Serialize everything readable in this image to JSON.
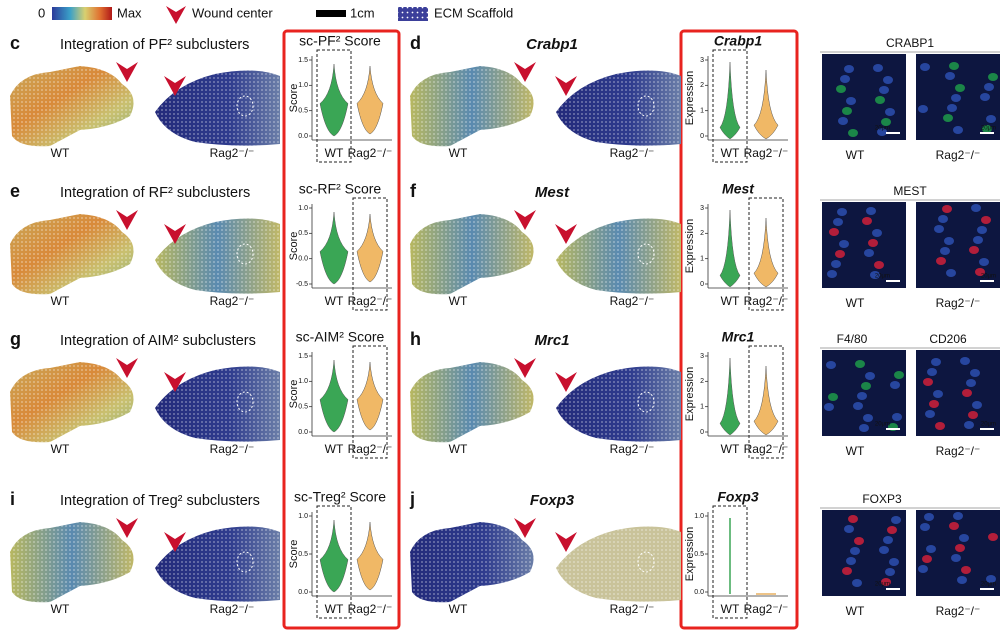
{
  "legend": {
    "min": "0",
    "max": "Max",
    "wound": "Wound center",
    "scale": "1cm",
    "ecm": "ECM Scaffold"
  },
  "rows": [
    {
      "score_panel": {
        "letter": "c",
        "title": "Integration of PF² subclusters",
        "wt": "WT",
        "ko": "Rag2⁻/⁻",
        "violin_title": "sc-PF² Score",
        "y_label": "Score",
        "yticks": [
          "1.5",
          "1.0",
          "0.5",
          "0.0"
        ],
        "groups": [
          "WT",
          "Rag2⁻/⁻"
        ]
      },
      "gene_panel": {
        "letter": "d",
        "title": "Crabp1",
        "wt": "WT",
        "ko": "Rag2⁻/⁻",
        "violin_title": "Crabp1",
        "y_label": "Expression",
        "yticks": [
          "3",
          "2",
          "1",
          "0"
        ],
        "groups": [
          "WT",
          "Rag2⁻/⁻"
        ]
      },
      "image": {
        "labels": [
          {
            "text": "CRABP1",
            "color": "#1e9a4a"
          }
        ],
        "wt": "WT",
        "ko": "Rag2⁻/⁻",
        "scale": "20μm"
      }
    },
    {
      "score_panel": {
        "letter": "e",
        "title": "Integration of RF² subclusters",
        "wt": "WT",
        "ko": "Rag2⁻/⁻",
        "violin_title": "sc-RF² Score",
        "y_label": "Score",
        "yticks": [
          "1.0",
          "0.5",
          "0.0",
          "-0.5"
        ],
        "groups": [
          "WT",
          "Rag2⁻/⁻"
        ]
      },
      "gene_panel": {
        "letter": "f",
        "title": "Mest",
        "wt": "WT",
        "ko": "Rag2⁻/⁻",
        "violin_title": "Mest",
        "y_label": "Expression",
        "yticks": [
          "3",
          "2",
          "1",
          "0"
        ],
        "groups": [
          "WT",
          "Rag2⁻/⁻"
        ]
      },
      "image": {
        "labels": [
          {
            "text": "MEST",
            "color": "#d0203a"
          }
        ],
        "wt": "WT",
        "ko": "Rag2⁻/⁻",
        "scale": "20μm"
      }
    },
    {
      "score_panel": {
        "letter": "g",
        "title": "Integration of AIM² subclusters",
        "wt": "WT",
        "ko": "Rag2⁻/⁻",
        "violin_title": "sc-AIM² Score",
        "y_label": "Score",
        "yticks": [
          "1.5",
          "1.0",
          "0.5",
          "0.0"
        ],
        "groups": [
          "WT",
          "Rag2⁻/⁻"
        ]
      },
      "gene_panel": {
        "letter": "h",
        "title": "Mrc1",
        "wt": "WT",
        "ko": "Rag2⁻/⁻",
        "violin_title": "Mrc1",
        "y_label": "Expression",
        "yticks": [
          "3",
          "2",
          "1",
          "0"
        ],
        "groups": [
          "WT",
          "Rag2⁻/⁻"
        ]
      },
      "image": {
        "labels": [
          {
            "text": "F4/80",
            "color": "#1e9a4a"
          },
          {
            "text": "CD206",
            "color": "#d0203a"
          }
        ],
        "wt": "WT",
        "ko": "Rag2⁻/⁻",
        "scale": "20μm"
      }
    },
    {
      "score_panel": {
        "letter": "i",
        "title": "Integration of Treg² subclusters",
        "wt": "WT",
        "ko": "Rag2⁻/⁻",
        "violin_title": "sc-Treg² Score",
        "y_label": "Score",
        "yticks": [
          "1.0",
          "0.5",
          "0.0"
        ],
        "groups": [
          "WT",
          "Rag2⁻/⁻"
        ]
      },
      "gene_panel": {
        "letter": "j",
        "title": "Foxp3",
        "wt": "WT",
        "ko": "Rag2⁻/⁻",
        "violin_title": "Foxp3",
        "y_label": "Expression",
        "yticks": [
          "1.0",
          "0.5",
          "0.0"
        ],
        "groups": [
          "WT",
          "Rag2⁻/⁻"
        ]
      },
      "image": {
        "labels": [
          {
            "text": "FOXP3",
            "color": "#d0203a"
          }
        ],
        "wt": "WT",
        "ko": "Rag2⁻/⁻",
        "scale": "20μm"
      }
    }
  ]
}
